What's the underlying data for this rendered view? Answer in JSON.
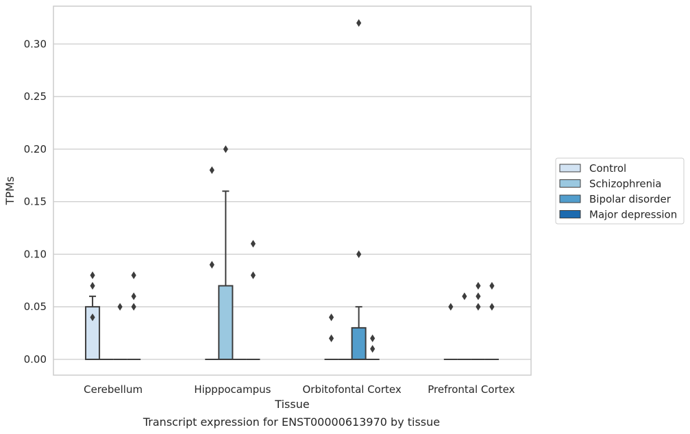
{
  "chart_data": {
    "type": "box",
    "title": "",
    "caption": "Transcript expression for ENST00000613970 by tissue",
    "xlabel": "Tissue",
    "ylabel": "TPMs",
    "ylim": [
      -0.015,
      0.336
    ],
    "yticks": [
      "0.00",
      "0.05",
      "0.10",
      "0.15",
      "0.20",
      "0.25",
      "0.30"
    ],
    "ytick_values": [
      0.0,
      0.05,
      0.1,
      0.15,
      0.2,
      0.25,
      0.3
    ],
    "grid": "horizontal",
    "legend_position": "right",
    "categories": [
      "Cerebellum",
      "Hipppocampus",
      "Orbitofontal Cortex",
      "Prefrontal Cortex"
    ],
    "series": [
      {
        "name": "Control",
        "color": "#d2e3f3",
        "boxes": [
          {
            "q1": 0.0,
            "median": 0.0,
            "q3": 0.05,
            "whisker_low": 0.0,
            "whisker_high": 0.06,
            "outliers": [
              0.04,
              0.07,
              0.08
            ]
          },
          {
            "q1": 0.0,
            "median": 0.0,
            "q3": 0.0,
            "whisker_low": 0.0,
            "whisker_high": 0.0,
            "outliers": [
              0.09,
              0.18
            ]
          },
          {
            "q1": 0.0,
            "median": 0.0,
            "q3": 0.0,
            "whisker_low": 0.0,
            "whisker_high": 0.0,
            "outliers": [
              0.02,
              0.04
            ]
          },
          {
            "q1": 0.0,
            "median": 0.0,
            "q3": 0.0,
            "whisker_low": 0.0,
            "whisker_high": 0.0,
            "outliers": [
              0.05
            ]
          }
        ]
      },
      {
        "name": "Schizophrenia",
        "color": "#9ac8e0",
        "boxes": [
          {
            "q1": 0.0,
            "median": 0.0,
            "q3": 0.0,
            "whisker_low": 0.0,
            "whisker_high": 0.0,
            "outliers": []
          },
          {
            "q1": 0.0,
            "median": 0.0,
            "q3": 0.07,
            "whisker_low": 0.0,
            "whisker_high": 0.16,
            "outliers": [
              0.2
            ]
          },
          {
            "q1": 0.0,
            "median": 0.0,
            "q3": 0.0,
            "whisker_low": 0.0,
            "whisker_high": 0.0,
            "outliers": []
          },
          {
            "q1": 0.0,
            "median": 0.0,
            "q3": 0.0,
            "whisker_low": 0.0,
            "whisker_high": 0.0,
            "outliers": [
              0.06
            ]
          }
        ]
      },
      {
        "name": "Bipolar disorder",
        "color": "#529dcc",
        "boxes": [
          {
            "q1": 0.0,
            "median": 0.0,
            "q3": 0.0,
            "whisker_low": 0.0,
            "whisker_high": 0.0,
            "outliers": [
              0.05
            ]
          },
          {
            "q1": 0.0,
            "median": 0.0,
            "q3": 0.0,
            "whisker_low": 0.0,
            "whisker_high": 0.0,
            "outliers": []
          },
          {
            "q1": 0.0,
            "median": 0.0,
            "q3": 0.03,
            "whisker_low": 0.0,
            "whisker_high": 0.05,
            "outliers": [
              0.1,
              0.32
            ]
          },
          {
            "q1": 0.0,
            "median": 0.0,
            "q3": 0.0,
            "whisker_low": 0.0,
            "whisker_high": 0.0,
            "outliers": [
              0.05,
              0.06,
              0.07
            ]
          }
        ]
      },
      {
        "name": "Major depression",
        "color": "#1c6aaf",
        "boxes": [
          {
            "q1": 0.0,
            "median": 0.0,
            "q3": 0.0,
            "whisker_low": 0.0,
            "whisker_high": 0.0,
            "outliers": [
              0.05,
              0.06,
              0.08
            ]
          },
          {
            "q1": 0.0,
            "median": 0.0,
            "q3": 0.0,
            "whisker_low": 0.0,
            "whisker_high": 0.0,
            "outliers": [
              0.08,
              0.11
            ]
          },
          {
            "q1": 0.0,
            "median": 0.0,
            "q3": 0.0,
            "whisker_low": 0.0,
            "whisker_high": 0.0,
            "outliers": [
              0.01,
              0.02
            ]
          },
          {
            "q1": 0.0,
            "median": 0.0,
            "q3": 0.0,
            "whisker_low": 0.0,
            "whisker_high": 0.0,
            "outliers": [
              0.05,
              0.07
            ]
          }
        ]
      }
    ]
  }
}
